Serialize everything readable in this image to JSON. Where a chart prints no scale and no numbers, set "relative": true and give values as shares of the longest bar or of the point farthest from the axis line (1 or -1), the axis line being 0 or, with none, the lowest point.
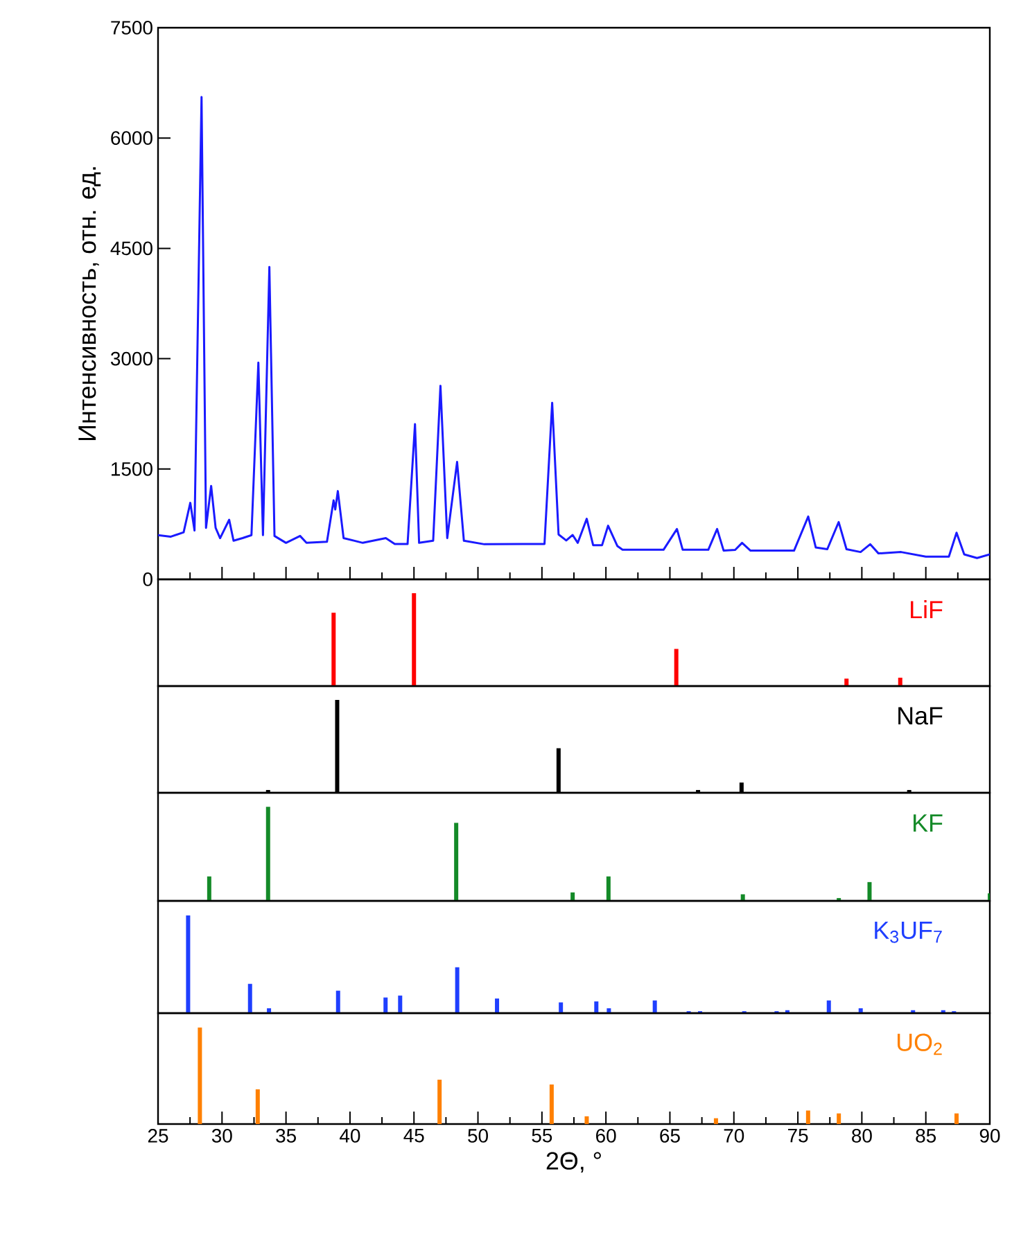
{
  "chart_data": [
    {
      "type": "line",
      "ylabel": "Интенсивность, отн. ед.",
      "color": "#1a1aff",
      "xlim": [
        25,
        90
      ],
      "ylim": [
        0,
        7500
      ],
      "xticks": [
        25,
        30,
        35,
        40,
        45,
        50,
        55,
        60,
        65,
        70,
        75,
        80,
        85,
        90
      ],
      "yticks": [
        0,
        1500,
        3000,
        4500,
        6000,
        7500
      ],
      "tick_labels": "y",
      "x": [
        25.0,
        26.0,
        27.0,
        27.52,
        27.85,
        28.4,
        28.75,
        29.15,
        29.5,
        29.85,
        30.56,
        30.9,
        31.6,
        32.3,
        32.84,
        33.2,
        33.7,
        34.1,
        35.0,
        36.1,
        36.6,
        38.2,
        38.72,
        38.85,
        39.05,
        39.5,
        41.0,
        42.8,
        43.5,
        44.5,
        45.08,
        45.4,
        46.5,
        47.07,
        47.6,
        48.37,
        48.9,
        50.5,
        53.5,
        55.2,
        55.8,
        56.3,
        56.9,
        57.4,
        57.8,
        58.5,
        59.0,
        59.7,
        60.17,
        60.9,
        61.3,
        64.5,
        65.55,
        66.0,
        68.0,
        68.69,
        69.2,
        70.1,
        70.64,
        71.3,
        74.7,
        75.81,
        76.4,
        77.3,
        78.19,
        78.8,
        79.9,
        80.65,
        81.3,
        83.07,
        85.0,
        86.8,
        87.4,
        88.0,
        89.0,
        90.0
      ],
      "values": [
        600,
        580,
        640,
        1040,
        665,
        6557,
        700,
        1270,
        700,
        560,
        810,
        525,
        560,
        600,
        2946,
        600,
        4246,
        590,
        496,
        590,
        496,
        510,
        1074,
        950,
        1200,
        560,
        496,
        560,
        480,
        480,
        2110,
        496,
        525,
        2632,
        560,
        1596,
        525,
        477,
        480,
        480,
        2399,
        610,
        528,
        603,
        496,
        823,
        465,
        465,
        729,
        452,
        402,
        402,
        684,
        402,
        402,
        684,
        390,
        400,
        496,
        390,
        390,
        854,
        433,
        410,
        779,
        410,
        371,
        477,
        352,
        371,
        308,
        308,
        634,
        339,
        289,
        339
      ]
    },
    {
      "type": "bar",
      "relative": true,
      "xlim": [
        25,
        90
      ],
      "tick_labels": false,
      "x": [
        38.72,
        45.0,
        65.5,
        78.8,
        83.0
      ],
      "series": [
        {
          "name": "LiF",
          "color": "#ff0000",
          "values": [
            0.79,
            1,
            0.4,
            0.08,
            0.09
          ]
        }
      ]
    },
    {
      "type": "bar",
      "relative": true,
      "xlim": [
        25,
        90
      ],
      "tick_labels": false,
      "x": [
        33.6,
        39.0,
        56.3,
        67.2,
        70.6,
        83.7
      ],
      "series": [
        {
          "name": "NaF",
          "color": "#000000",
          "values": [
            0.03,
            1,
            0.48,
            0.03,
            0.11,
            0.03
          ]
        }
      ]
    },
    {
      "type": "bar",
      "relative": true,
      "xlim": [
        25,
        90
      ],
      "tick_labels": false,
      "x": [
        29.0,
        33.6,
        48.3,
        57.4,
        60.2,
        70.7,
        78.2,
        80.6,
        90.0
      ],
      "series": [
        {
          "name": "KF",
          "color": "#148a28",
          "values": [
            0.26,
            1,
            0.83,
            0.09,
            0.26,
            0.07,
            0.03,
            0.2,
            0.08
          ]
        }
      ]
    },
    {
      "type": "bar",
      "relative": true,
      "xlim": [
        25,
        90
      ],
      "tick_labels": false,
      "x": [
        27.35,
        32.19,
        33.67,
        39.07,
        42.78,
        43.92,
        48.38,
        51.49,
        56.48,
        59.25,
        60.23,
        63.82,
        66.47,
        67.36,
        70.81,
        73.34,
        74.18,
        77.42,
        79.91,
        84.0,
        86.36,
        87.2
      ],
      "series": [
        {
          "name": "K$_{3}$UF$_{7}$",
          "color": "#1f3fff",
          "values": [
            1,
            0.3,
            0.05,
            0.23,
            0.16,
            0.18,
            0.47,
            0.15,
            0.11,
            0.12,
            0.05,
            0.13,
            0.02,
            0.02,
            0.02,
            0.02,
            0.03,
            0.13,
            0.05,
            0.03,
            0.03,
            0.02
          ]
        }
      ]
    },
    {
      "type": "bar",
      "relative": true,
      "xlabel": "2Θ, °",
      "xlim": [
        25,
        90
      ],
      "xticks": [
        25,
        30,
        35,
        40,
        45,
        50,
        55,
        60,
        65,
        70,
        75,
        80,
        85,
        90
      ],
      "tick_labels": "x",
      "x": [
        28.27,
        32.79,
        47.0,
        55.76,
        58.5,
        68.6,
        75.8,
        78.2,
        87.4
      ],
      "series": [
        {
          "name": "UO$_{2}$",
          "color": "#ff8000",
          "values": [
            1,
            0.36,
            0.46,
            0.41,
            0.08,
            0.06,
            0.14,
            0.11,
            0.11
          ]
        }
      ]
    }
  ]
}
